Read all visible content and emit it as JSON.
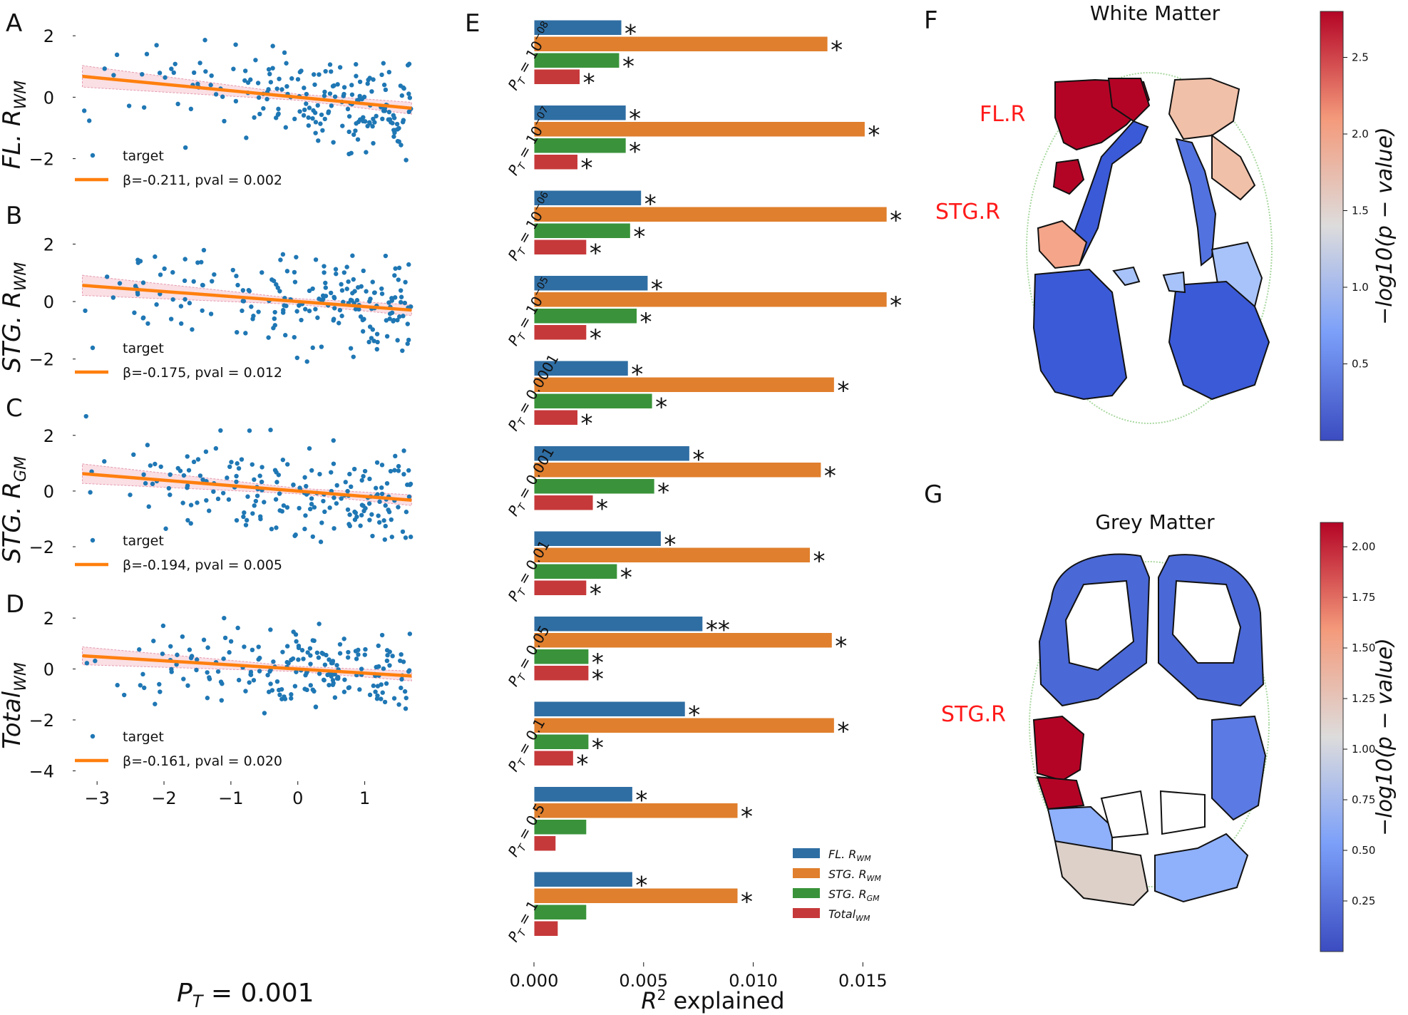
{
  "colors": {
    "dot": "#1f77b4",
    "fit": "#ff7f0e",
    "band": "#f4b8c4",
    "fl": "#2f6ea3",
    "stg_wm": "#e07f2d",
    "stg_gm": "#3a933a",
    "total": "#c6393a",
    "label_red": "#ff1a1a"
  },
  "panels": {
    "A": "A",
    "B": "B",
    "C": "C",
    "D": "D",
    "E": "E",
    "F": "F",
    "G": "G"
  },
  "scatter": {
    "xlabel": "P_T = 0.001",
    "xlabel_main": "P",
    "xlabel_sub": "T",
    "xlabel_rest": " = 0.001",
    "xticks": [
      -3,
      -2,
      -1,
      0,
      1
    ],
    "xlim": [
      -3.3,
      1.75
    ],
    "legend_target": "target",
    "rows": [
      {
        "letter": "A",
        "ylabel_main": "FL. R",
        "ylabel_sub": "WM",
        "yticks": [
          2,
          0,
          -2
        ],
        "ylim": [
          -3.1,
          2.7
        ],
        "slope": -0.211,
        "intercept": 0.0,
        "fit_label": "β=-0.211, pval = 0.002",
        "seed": 11
      },
      {
        "letter": "B",
        "ylabel_main": "STG. R",
        "ylabel_sub": "WM",
        "yticks": [
          2,
          0,
          -2
        ],
        "ylim": [
          -2.9,
          3.3
        ],
        "slope": -0.175,
        "intercept": 0.0,
        "fit_label": "β=-0.175, pval = 0.012",
        "seed": 23
      },
      {
        "letter": "C",
        "ylabel_main": "STG. R",
        "ylabel_sub": "GM",
        "yticks": [
          2,
          0,
          -2
        ],
        "ylim": [
          -3.1,
          3.3
        ],
        "slope": -0.194,
        "intercept": 0.0,
        "fit_label": "β=-0.194, pval = 0.005",
        "seed": 37
      },
      {
        "letter": "D",
        "ylabel_main": "Total",
        "ylabel_sub": "WM",
        "yticks": [
          2,
          0,
          -2,
          -4
        ],
        "ylim": [
          -4.1,
          2.9
        ],
        "slope": -0.161,
        "intercept": 0.0,
        "fit_label": "β=-0.161, pval = 0.020",
        "seed": 53
      }
    ]
  },
  "chart_data": [
    {
      "type": "bar",
      "orientation": "horizontal",
      "xlabel": "R^2 explained",
      "xticks": [
        "0.000",
        "0.005",
        "0.010",
        "0.015"
      ],
      "xlim": [
        0,
        0.0172
      ],
      "categories": [
        "P_T = 10^-08",
        "P_T = 10^-07",
        "P_T = 10^-06",
        "P_T = 10^-05",
        "P_T = 0.0001",
        "P_T = 0.001",
        "P_T = 0.01",
        "P_T = 0.05",
        "P_T = 0.1",
        "P_T = 0.5",
        "P_T = 1"
      ],
      "category_labels": [
        {
          "main": "P",
          "sub": "T",
          "rest": " = 10",
          "sup": "−08"
        },
        {
          "main": "P",
          "sub": "T",
          "rest": " = 10",
          "sup": "−07"
        },
        {
          "main": "P",
          "sub": "T",
          "rest": " = 10",
          "sup": "−06"
        },
        {
          "main": "P",
          "sub": "T",
          "rest": " = 10",
          "sup": "−05"
        },
        {
          "main": "P",
          "sub": "T",
          "rest": " = 0.0001",
          "sup": ""
        },
        {
          "main": "P",
          "sub": "T",
          "rest": " = 0.001",
          "sup": ""
        },
        {
          "main": "P",
          "sub": "T",
          "rest": " = 0.01",
          "sup": ""
        },
        {
          "main": "P",
          "sub": "T",
          "rest": " = 0.05",
          "sup": ""
        },
        {
          "main": "P",
          "sub": "T",
          "rest": " = 0.1",
          "sup": ""
        },
        {
          "main": "P",
          "sub": "T",
          "rest": " = 0.5",
          "sup": ""
        },
        {
          "main": "P",
          "sub": "T",
          "rest": " = 1",
          "sup": ""
        }
      ],
      "series": [
        {
          "name": "FL. R_WM",
          "legend_main": "FL. R",
          "legend_sub": "WM",
          "values": [
            0.004,
            0.0042,
            0.0049,
            0.0052,
            0.0043,
            0.0071,
            0.0058,
            0.0077,
            0.0069,
            0.0045,
            0.0045
          ],
          "stars": [
            "*",
            "*",
            "*",
            "*",
            "*",
            "*",
            "*",
            "**",
            "*",
            "*",
            "*"
          ]
        },
        {
          "name": "STG. R_WM",
          "legend_main": "STG. R",
          "legend_sub": "WM",
          "values": [
            0.0134,
            0.0151,
            0.0161,
            0.0161,
            0.0137,
            0.0131,
            0.0126,
            0.0136,
            0.0137,
            0.0093,
            0.0093
          ],
          "stars": [
            "*",
            "*",
            "*",
            "*",
            "*",
            "*",
            "*",
            "*",
            "*",
            "*",
            "*"
          ]
        },
        {
          "name": "STG. R_GM",
          "legend_main": "STG. R",
          "legend_sub": "GM",
          "values": [
            0.0039,
            0.0042,
            0.0044,
            0.0047,
            0.0054,
            0.0055,
            0.0038,
            0.0025,
            0.0025,
            0.0024,
            0.0024
          ],
          "stars": [
            "*",
            "*",
            "*",
            "*",
            "*",
            "*",
            "*",
            "*",
            "*",
            "",
            ""
          ]
        },
        {
          "name": "Total_WM",
          "legend_main": "Total",
          "legend_sub": "WM",
          "values": [
            0.0021,
            0.002,
            0.0024,
            0.0024,
            0.002,
            0.0027,
            0.0024,
            0.0025,
            0.0018,
            0.001,
            0.0011
          ],
          "stars": [
            "*",
            "*",
            "*",
            "*",
            "*",
            "*",
            "*",
            "*",
            "*",
            "",
            ""
          ]
        }
      ]
    }
  ],
  "maps": {
    "wm_title": "White Matter",
    "gm_title": "Grey Matter",
    "fl_label": "FL.R",
    "stg_label": "STG.R",
    "stg_label_gm": "STG.R",
    "cb_label": "−log10(p − value)",
    "wm_cb_ticks": [
      "2.5",
      "2.0",
      "1.5",
      "1.0",
      "0.5"
    ],
    "wm_cb_vals": [
      2.5,
      2.0,
      1.5,
      1.0,
      0.5
    ],
    "wm_cb_range": [
      0.0,
      2.8
    ],
    "gm_cb_ticks": [
      "2.00",
      "1.75",
      "1.50",
      "1.25",
      "1.00",
      "0.75",
      "0.50",
      "0.25"
    ],
    "gm_cb_vals": [
      2.0,
      1.75,
      1.5,
      1.25,
      1.0,
      0.75,
      0.5,
      0.25
    ],
    "gm_cb_range": [
      0.0,
      2.12
    ]
  }
}
